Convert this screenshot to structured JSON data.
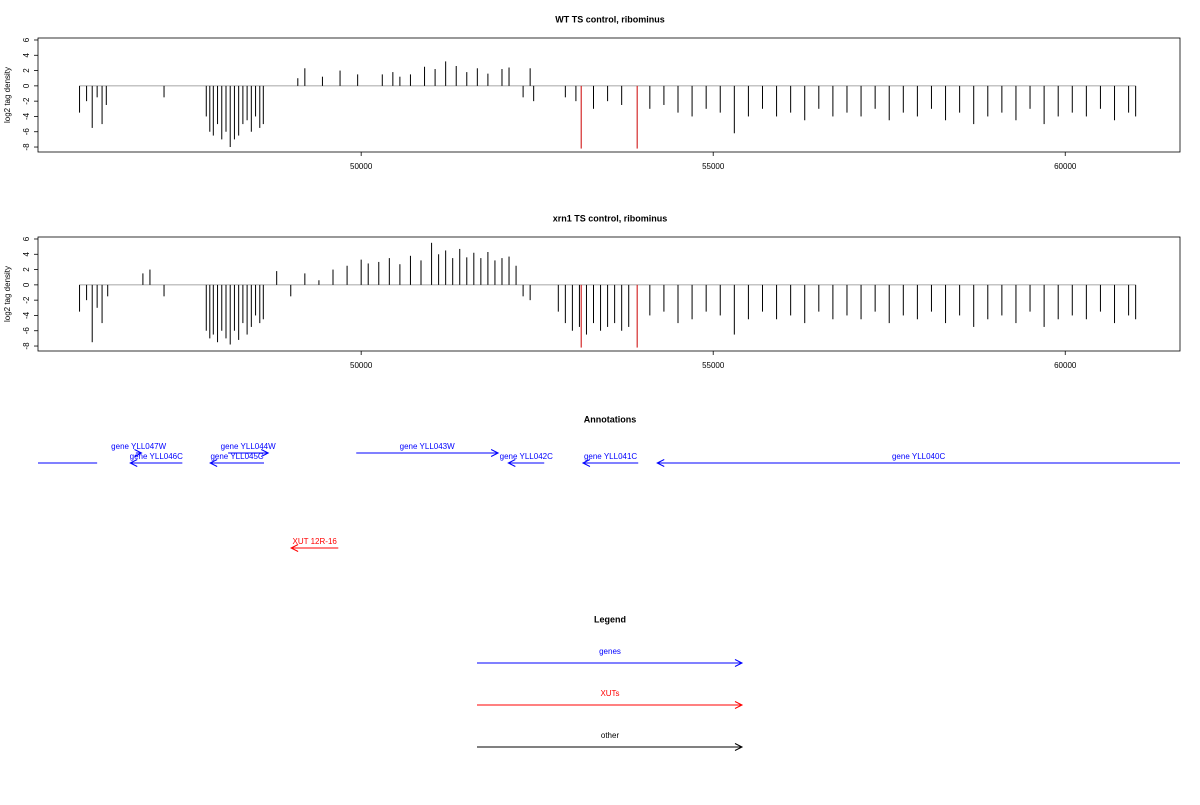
{
  "chart_data": [
    {
      "type": "spike",
      "title": "WT TS control, ribominus",
      "ylabel": "log2 tag density",
      "xlim": [
        45410,
        61630
      ],
      "ylim": [
        -8.65,
        6.26
      ],
      "xticks": [
        50000,
        55000,
        60000
      ],
      "yticks": [
        -8,
        -6,
        -4,
        -2,
        0,
        2,
        4,
        6
      ],
      "series": [
        {
          "color": "#000000",
          "x": [
            46000,
            46100,
            46180,
            46250,
            46320,
            46380,
            47200,
            47800,
            47850,
            47900,
            47960,
            48020,
            48080,
            48140,
            48200,
            48260,
            48320,
            48380,
            48440,
            48500,
            48560,
            48610,
            49100,
            49200,
            49450,
            49700,
            49950,
            50300,
            50450,
            50550,
            50700,
            50900,
            51050,
            51200,
            51350,
            51500,
            51650,
            51800,
            52000,
            52100,
            52300,
            52400,
            52450,
            52900,
            53050,
            53300,
            53500,
            53700,
            54100,
            54300,
            54500,
            54700,
            54900,
            55100,
            55300,
            55500,
            55700,
            55900,
            56100,
            56300,
            56500,
            56700,
            56900,
            57100,
            57300,
            57500,
            57700,
            57900,
            58100,
            58300,
            58500,
            58700,
            58900,
            59100,
            59300,
            59500,
            59700,
            59900,
            60100,
            60300,
            60500,
            60700,
            60900,
            61000
          ],
          "values": [
            -3.5,
            -2,
            -5.5,
            -1.5,
            -5,
            -2.5,
            -1.5,
            -4,
            -6,
            -6.5,
            -5,
            -7,
            -6,
            -8,
            -7,
            -6.5,
            -5,
            -4.5,
            -6,
            -4,
            -5.5,
            -5,
            1,
            2.3,
            1.2,
            2,
            1.5,
            1.5,
            1.8,
            1.2,
            1.5,
            2.5,
            2.2,
            3.2,
            2.6,
            1.8,
            2.3,
            1.6,
            2.2,
            2.4,
            -1.5,
            2.3,
            -2,
            -1.5,
            -2,
            -3,
            -2,
            -2.5,
            -3,
            -2.5,
            -3.5,
            -4,
            -3,
            -3.5,
            -6.2,
            -4,
            -3,
            -4,
            -3.5,
            -4.5,
            -3,
            -4,
            -3.5,
            -4,
            -3,
            -4.5,
            -3.5,
            -4,
            -3,
            -4.5,
            -3.5,
            -5,
            -4,
            -3.5,
            -4.5,
            -3,
            -5,
            -4,
            -3.5,
            -4,
            -3,
            -4.5,
            -3.5,
            -4
          ]
        },
        {
          "color": "#cc0000",
          "x": [
            53125,
            53920
          ],
          "values": [
            -8.2,
            -8.2
          ]
        }
      ]
    },
    {
      "type": "spike",
      "title": "xrn1 TS control, ribominus",
      "ylabel": "log2 tag density",
      "xlim": [
        45410,
        61630
      ],
      "ylim": [
        -8.65,
        6.26
      ],
      "xticks": [
        50000,
        55000,
        60000
      ],
      "yticks": [
        -8,
        -6,
        -4,
        -2,
        0,
        2,
        4,
        6
      ],
      "series": [
        {
          "color": "#000000",
          "x": [
            46000,
            46100,
            46180,
            46250,
            46320,
            46400,
            46900,
            47000,
            47200,
            47800,
            47850,
            47900,
            47960,
            48020,
            48080,
            48140,
            48200,
            48260,
            48320,
            48380,
            48440,
            48500,
            48560,
            48610,
            48800,
            49000,
            49200,
            49400,
            49600,
            49800,
            50000,
            50100,
            50250,
            50400,
            50550,
            50700,
            50850,
            51000,
            51100,
            51200,
            51300,
            51400,
            51500,
            51600,
            51700,
            51800,
            51900,
            52000,
            52100,
            52200,
            52300,
            52400,
            52800,
            52900,
            53000,
            53100,
            53200,
            53300,
            53400,
            53500,
            53600,
            53700,
            53800,
            54100,
            54300,
            54500,
            54700,
            54900,
            55100,
            55300,
            55500,
            55700,
            55900,
            56100,
            56300,
            56500,
            56700,
            56900,
            57100,
            57300,
            57500,
            57700,
            57900,
            58100,
            58300,
            58500,
            58700,
            58900,
            59100,
            59300,
            59500,
            59700,
            59900,
            60100,
            60300,
            60500,
            60700,
            60900,
            61000
          ],
          "values": [
            -3.5,
            -2,
            -7.5,
            -3,
            -5,
            -1.5,
            1.5,
            2,
            -1.5,
            -6,
            -7,
            -6.5,
            -7.5,
            -6,
            -7,
            -7.8,
            -6,
            -7.2,
            -5,
            -6.5,
            -5.5,
            -4,
            -5,
            -4.5,
            1.8,
            -1.5,
            1.5,
            0.6,
            2,
            2.5,
            3.3,
            2.8,
            3,
            3.5,
            2.7,
            3.8,
            3.2,
            5.5,
            4,
            4.5,
            3.5,
            4.7,
            3.6,
            4.2,
            3.5,
            4.3,
            3.2,
            3.5,
            3.7,
            2.5,
            -1.5,
            -2,
            -3.5,
            -5,
            -6,
            -5.5,
            -6.5,
            -5,
            -6,
            -5.5,
            -5,
            -6,
            -5.5,
            -4,
            -3.5,
            -5,
            -4.5,
            -3.5,
            -4,
            -6.5,
            -4.5,
            -3.5,
            -4.5,
            -4,
            -5,
            -3.5,
            -4.5,
            -4,
            -4.5,
            -3.5,
            -5,
            -4,
            -4.5,
            -3.5,
            -5,
            -4,
            -5.5,
            -4.5,
            -4,
            -5,
            -3.5,
            -5.5,
            -4.5,
            -4,
            -4.5,
            -3.5,
            -5,
            -4,
            -4.5
          ]
        },
        {
          "color": "#cc0000",
          "x": [
            53125,
            53920
          ],
          "values": [
            -8.2,
            -8.2
          ]
        }
      ]
    },
    {
      "type": "annotation",
      "title": "Annotations",
      "xlim": [
        45410,
        61630
      ],
      "features": [
        {
          "start": 45410,
          "end": 46250,
          "color": "#0000ff"
        },
        {
          "label": "gene YLL047W",
          "start": 46800,
          "end": 46880,
          "strand": "+",
          "color": "#0000ff"
        },
        {
          "label": "gene YLL046C",
          "start": 46720,
          "end": 47460,
          "strand": "-",
          "color": "#0000ff"
        },
        {
          "label": "gene YLL045C",
          "start": 47855,
          "end": 48620,
          "strand": "-",
          "color": "#0000ff"
        },
        {
          "label": "gene YLL044W",
          "start": 48110,
          "end": 48680,
          "strand": "+",
          "color": "#0000ff"
        },
        {
          "label": "gene YLL043W",
          "start": 49930,
          "end": 51945,
          "strand": "+",
          "color": "#0000ff"
        },
        {
          "label": "gene YLL042C",
          "start": 52090,
          "end": 52600,
          "strand": "-",
          "color": "#0000ff"
        },
        {
          "label": "gene YLL041C",
          "start": 53150,
          "end": 53935,
          "strand": "-",
          "color": "#0000ff"
        },
        {
          "label": "gene YLL040C",
          "start": 54205,
          "end": 61630,
          "strand": "-",
          "color": "#0000ff"
        },
        {
          "label": "XUT 12R-16",
          "start": 49005,
          "end": 49675,
          "strand": "-",
          "color": "#ff0000"
        }
      ]
    },
    {
      "type": "legend",
      "title": "Legend",
      "items": [
        {
          "name": "genes",
          "color": "#0000ff"
        },
        {
          "name": "XUTs",
          "color": "#ff0000"
        },
        {
          "name": "other",
          "color": "#000000"
        }
      ]
    }
  ]
}
